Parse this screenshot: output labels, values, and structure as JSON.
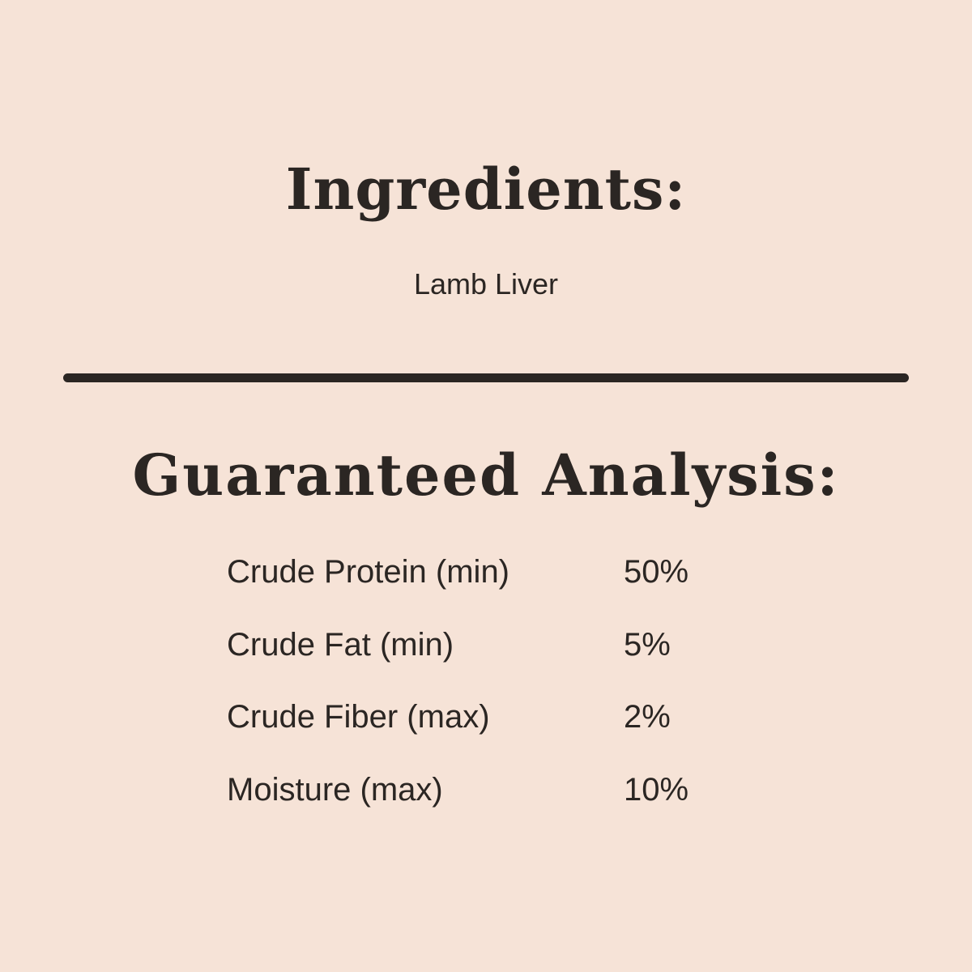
{
  "ingredients": {
    "title": "Ingredients:",
    "text": "Lamb Liver"
  },
  "analysis": {
    "title": "Guaranteed Analysis:",
    "rows": [
      {
        "label": "Crude Protein (min)",
        "value": "50%"
      },
      {
        "label": "Crude Fat (min)",
        "value": "5%"
      },
      {
        "label": "Crude Fiber (max)",
        "value": "2%"
      },
      {
        "label": "Moisture (max)",
        "value": "10%"
      }
    ]
  },
  "colors": {
    "background": "#f6e3d7",
    "text": "#2b2623"
  }
}
